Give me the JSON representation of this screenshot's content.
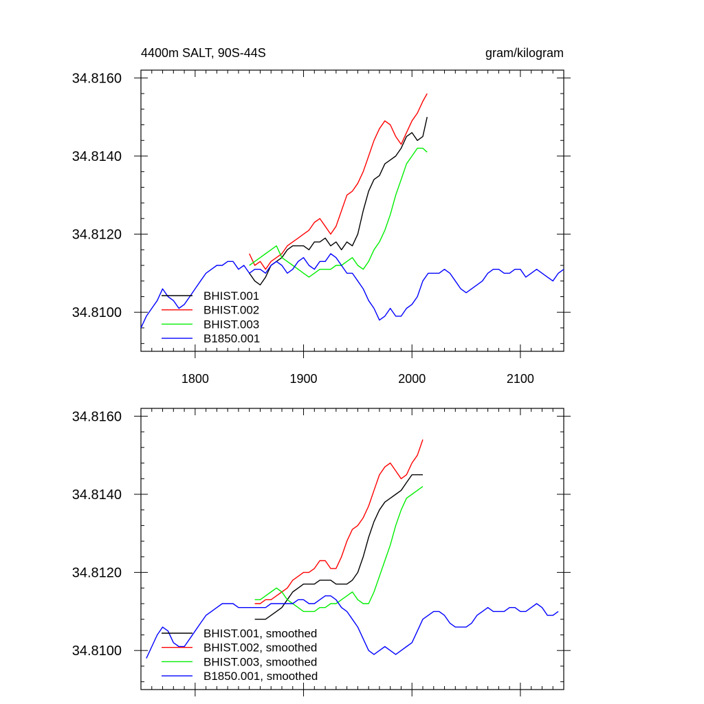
{
  "chart_data": [
    {
      "type": "line",
      "title": "4400m SALT, 90S-44S",
      "units": "gram/kilogram",
      "xlim": [
        1750,
        2140
      ],
      "ylim": [
        34.809,
        34.8162
      ],
      "xticks": [
        1800,
        1900,
        2000,
        2100
      ],
      "yticks": [
        34.81,
        34.812,
        34.814,
        34.816
      ],
      "ytick_labels": [
        "34.8100",
        "34.8120",
        "34.8140",
        "34.8160"
      ],
      "xtick_labels": [
        "1800",
        "1900",
        "2000",
        "2100"
      ],
      "grid": false,
      "legend_position": "bottom-left",
      "series": [
        {
          "name": "BHIST.001",
          "color": "#000000",
          "x": [
            1850,
            1855,
            1860,
            1865,
            1870,
            1875,
            1880,
            1885,
            1890,
            1895,
            1900,
            1905,
            1910,
            1915,
            1920,
            1925,
            1930,
            1935,
            1940,
            1945,
            1950,
            1955,
            1960,
            1965,
            1970,
            1975,
            1980,
            1985,
            1990,
            1995,
            2000,
            2005,
            2010,
            2014
          ],
          "y": [
            34.811,
            34.8108,
            34.8107,
            34.8109,
            34.8112,
            34.8113,
            34.8114,
            34.8116,
            34.8117,
            34.8117,
            34.8117,
            34.8116,
            34.8118,
            34.8118,
            34.8119,
            34.8117,
            34.8118,
            34.8116,
            34.8118,
            34.8117,
            34.812,
            34.8126,
            34.8131,
            34.8134,
            34.8135,
            34.8138,
            34.8139,
            34.814,
            34.8142,
            34.8145,
            34.8146,
            34.8144,
            34.8145,
            34.815
          ]
        },
        {
          "name": "BHIST.002",
          "color": "#ff0000",
          "x": [
            1850,
            1855,
            1860,
            1865,
            1870,
            1875,
            1880,
            1885,
            1890,
            1895,
            1900,
            1905,
            1910,
            1915,
            1920,
            1925,
            1930,
            1935,
            1940,
            1945,
            1950,
            1955,
            1960,
            1965,
            1970,
            1975,
            1980,
            1985,
            1990,
            1995,
            2000,
            2005,
            2010,
            2014
          ],
          "y": [
            34.8115,
            34.8112,
            34.8113,
            34.8111,
            34.8113,
            34.8114,
            34.8115,
            34.8117,
            34.8118,
            34.8119,
            34.812,
            34.8121,
            34.8123,
            34.8124,
            34.8122,
            34.812,
            34.8122,
            34.8126,
            34.813,
            34.8131,
            34.8133,
            34.8136,
            34.814,
            34.8144,
            34.8147,
            34.8149,
            34.8148,
            34.8145,
            34.8143,
            34.8146,
            34.8149,
            34.8151,
            34.8154,
            34.8156
          ]
        },
        {
          "name": "BHIST.003",
          "color": "#00ee00",
          "x": [
            1850,
            1855,
            1860,
            1865,
            1870,
            1875,
            1880,
            1885,
            1890,
            1895,
            1900,
            1905,
            1910,
            1915,
            1920,
            1925,
            1930,
            1935,
            1940,
            1945,
            1950,
            1955,
            1960,
            1965,
            1970,
            1975,
            1980,
            1985,
            1990,
            1995,
            2000,
            2005,
            2010,
            2014
          ],
          "y": [
            34.8112,
            34.8113,
            34.8114,
            34.8115,
            34.8116,
            34.8117,
            34.8114,
            34.8113,
            34.8112,
            34.8111,
            34.811,
            34.8109,
            34.811,
            34.8111,
            34.8111,
            34.8111,
            34.8112,
            34.8112,
            34.8113,
            34.8114,
            34.8112,
            34.8111,
            34.8113,
            34.8116,
            34.8118,
            34.8121,
            34.8125,
            34.813,
            34.8134,
            34.8138,
            34.814,
            34.8142,
            34.8142,
            34.8141
          ]
        },
        {
          "name": "B1850.001",
          "color": "#0000ff",
          "x": [
            1750,
            1755,
            1760,
            1765,
            1770,
            1775,
            1780,
            1785,
            1790,
            1795,
            1800,
            1805,
            1810,
            1815,
            1820,
            1825,
            1830,
            1835,
            1840,
            1845,
            1850,
            1855,
            1860,
            1865,
            1870,
            1875,
            1880,
            1885,
            1890,
            1895,
            1900,
            1905,
            1910,
            1915,
            1920,
            1925,
            1930,
            1935,
            1940,
            1945,
            1950,
            1955,
            1960,
            1965,
            1970,
            1975,
            1980,
            1985,
            1990,
            1995,
            2000,
            2005,
            2010,
            2015,
            2020,
            2025,
            2030,
            2035,
            2040,
            2045,
            2050,
            2055,
            2060,
            2065,
            2070,
            2075,
            2080,
            2085,
            2090,
            2095,
            2100,
            2105,
            2110,
            2115,
            2120,
            2125,
            2130,
            2135,
            2140
          ],
          "y": [
            34.8096,
            34.8099,
            34.8101,
            34.8103,
            34.8106,
            34.8104,
            34.8103,
            34.8101,
            34.8102,
            34.8104,
            34.8106,
            34.8108,
            34.811,
            34.8111,
            34.8112,
            34.8112,
            34.8113,
            34.8113,
            34.8111,
            34.8112,
            34.811,
            34.8111,
            34.8111,
            34.811,
            34.8112,
            34.8113,
            34.8112,
            34.811,
            34.8111,
            34.8113,
            34.8114,
            34.8112,
            34.8111,
            34.8113,
            34.8113,
            34.8115,
            34.8114,
            34.8112,
            34.811,
            34.811,
            34.8108,
            34.8106,
            34.8103,
            34.8101,
            34.8098,
            34.8099,
            34.8101,
            34.8099,
            34.8099,
            34.8101,
            34.8102,
            34.8104,
            34.8108,
            34.811,
            34.811,
            34.811,
            34.8111,
            34.811,
            34.8108,
            34.8106,
            34.8105,
            34.8106,
            34.8107,
            34.8108,
            34.811,
            34.8111,
            34.8111,
            34.811,
            34.811,
            34.8111,
            34.8111,
            34.8109,
            34.811,
            34.8111,
            34.811,
            34.8109,
            34.8108,
            34.811,
            34.8111
          ]
        }
      ]
    },
    {
      "type": "line",
      "title": "",
      "xlim": [
        1750,
        2140
      ],
      "ylim": [
        34.809,
        34.8162
      ],
      "xticks": [
        1800,
        1900,
        2000,
        2100
      ],
      "yticks": [
        34.81,
        34.812,
        34.814,
        34.816
      ],
      "ytick_labels": [
        "34.8100",
        "34.8120",
        "34.8140",
        "34.8160"
      ],
      "grid": false,
      "legend_position": "bottom-left",
      "series": [
        {
          "name": "BHIST.001, smoothed",
          "color": "#000000",
          "x": [
            1855,
            1860,
            1865,
            1870,
            1875,
            1880,
            1885,
            1890,
            1895,
            1900,
            1905,
            1910,
            1915,
            1920,
            1925,
            1930,
            1935,
            1940,
            1945,
            1950,
            1955,
            1960,
            1965,
            1970,
            1975,
            1980,
            1985,
            1990,
            1995,
            2000,
            2005,
            2010
          ],
          "y": [
            34.8108,
            34.8108,
            34.8108,
            34.8109,
            34.811,
            34.8111,
            34.8113,
            34.8115,
            34.8116,
            34.8117,
            34.8117,
            34.8117,
            34.8118,
            34.8118,
            34.8118,
            34.8117,
            34.8117,
            34.8117,
            34.8118,
            34.812,
            34.8124,
            34.8129,
            34.8133,
            34.8136,
            34.8138,
            34.8139,
            34.814,
            34.8141,
            34.8143,
            34.8145,
            34.8145,
            34.8145
          ]
        },
        {
          "name": "BHIST.002, smoothed",
          "color": "#ff0000",
          "x": [
            1855,
            1860,
            1865,
            1870,
            1875,
            1880,
            1885,
            1890,
            1895,
            1900,
            1905,
            1910,
            1915,
            1920,
            1925,
            1930,
            1935,
            1940,
            1945,
            1950,
            1955,
            1960,
            1965,
            1970,
            1975,
            1980,
            1985,
            1990,
            1995,
            2000,
            2005,
            2010
          ],
          "y": [
            34.8112,
            34.8112,
            34.8113,
            34.8113,
            34.8114,
            34.8115,
            34.8116,
            34.8118,
            34.8119,
            34.812,
            34.812,
            34.8121,
            34.8123,
            34.8123,
            34.8121,
            34.8121,
            34.8124,
            34.8128,
            34.8131,
            34.8132,
            34.8134,
            34.8137,
            34.8141,
            34.8145,
            34.8147,
            34.8148,
            34.8146,
            34.8144,
            34.8145,
            34.8148,
            34.815,
            34.8154
          ]
        },
        {
          "name": "BHIST.003, smoothed",
          "color": "#00ee00",
          "x": [
            1855,
            1860,
            1865,
            1870,
            1875,
            1880,
            1885,
            1890,
            1895,
            1900,
            1905,
            1910,
            1915,
            1920,
            1925,
            1930,
            1935,
            1940,
            1945,
            1950,
            1955,
            1960,
            1965,
            1970,
            1975,
            1980,
            1985,
            1990,
            1995,
            2000,
            2005,
            2010
          ],
          "y": [
            34.8113,
            34.8113,
            34.8114,
            34.8115,
            34.8116,
            34.8115,
            34.8113,
            34.8112,
            34.8111,
            34.811,
            34.811,
            34.811,
            34.8111,
            34.8111,
            34.8112,
            34.8112,
            34.8113,
            34.8114,
            34.8115,
            34.8113,
            34.8112,
            34.8112,
            34.8115,
            34.8119,
            34.8123,
            34.8127,
            34.8132,
            34.8136,
            34.8139,
            34.814,
            34.8141,
            34.8142
          ]
        },
        {
          "name": "B1850.001, smoothed",
          "color": "#0000ff",
          "x": [
            1755,
            1760,
            1765,
            1770,
            1775,
            1780,
            1785,
            1790,
            1795,
            1800,
            1805,
            1810,
            1815,
            1820,
            1825,
            1830,
            1835,
            1840,
            1845,
            1850,
            1855,
            1860,
            1865,
            1870,
            1875,
            1880,
            1885,
            1890,
            1895,
            1900,
            1905,
            1910,
            1915,
            1920,
            1925,
            1930,
            1935,
            1940,
            1945,
            1950,
            1955,
            1960,
            1965,
            1970,
            1975,
            1980,
            1985,
            1990,
            1995,
            2000,
            2005,
            2010,
            2015,
            2020,
            2025,
            2030,
            2035,
            2040,
            2045,
            2050,
            2055,
            2060,
            2065,
            2070,
            2075,
            2080,
            2085,
            2090,
            2095,
            2100,
            2105,
            2110,
            2115,
            2120,
            2125,
            2130,
            2135
          ],
          "y": [
            34.8098,
            34.8101,
            34.8104,
            34.8106,
            34.8105,
            34.8102,
            34.8101,
            34.8101,
            34.8103,
            34.8105,
            34.8107,
            34.8109,
            34.811,
            34.8111,
            34.8112,
            34.8112,
            34.8112,
            34.8111,
            34.8111,
            34.8111,
            34.8111,
            34.8111,
            34.8111,
            34.8112,
            34.8112,
            34.8112,
            34.8112,
            34.8112,
            34.8113,
            34.8113,
            34.8112,
            34.8112,
            34.8113,
            34.8114,
            34.8114,
            34.8113,
            34.8111,
            34.811,
            34.8108,
            34.8106,
            34.8103,
            34.81,
            34.8099,
            34.81,
            34.8101,
            34.81,
            34.8099,
            34.81,
            34.8101,
            34.8102,
            34.8105,
            34.8108,
            34.8109,
            34.811,
            34.811,
            34.8109,
            34.8107,
            34.8106,
            34.8106,
            34.8106,
            34.8107,
            34.8109,
            34.811,
            34.8111,
            34.811,
            34.811,
            34.811,
            34.8111,
            34.8111,
            34.811,
            34.811,
            34.8111,
            34.8112,
            34.8111,
            34.8109,
            34.8109,
            34.811
          ]
        }
      ]
    }
  ]
}
